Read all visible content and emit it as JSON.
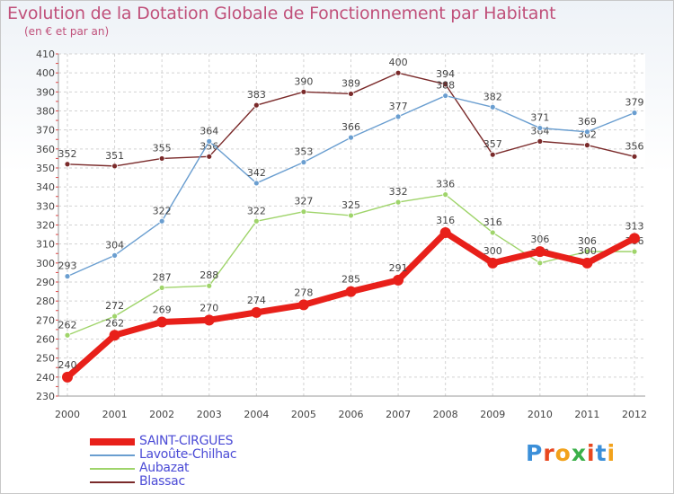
{
  "title": "Evolution de la Dotation Globale de Fonctionnement par Habitant",
  "subtitle": "(en € et par an)",
  "logo": {
    "letters": [
      "P",
      "r",
      "o",
      "x",
      "i",
      "t",
      "i"
    ],
    "colors": [
      "#3b8fd9",
      "#e8471f",
      "#f2a21b",
      "#3bb04a",
      "#e8471f",
      "#3b8fd9",
      "#f2a21b"
    ]
  },
  "chart_data": {
    "type": "line",
    "x": [
      "2000",
      "2001",
      "2002",
      "2003",
      "2004",
      "2005",
      "2006",
      "2007",
      "2008",
      "2009",
      "2010",
      "2011",
      "2012"
    ],
    "ylim": [
      230,
      410
    ],
    "yticks": [
      "230",
      "240",
      "250",
      "260",
      "270",
      "280",
      "290",
      "300",
      "310",
      "320",
      "330",
      "340",
      "350",
      "360",
      "370",
      "380",
      "390",
      "400",
      "410"
    ],
    "grid": true,
    "legend_position": "bottom-left",
    "series": [
      {
        "name": "Blassac",
        "color": "#7a2a2a",
        "values": [
          352,
          351,
          355,
          356,
          383,
          390,
          389,
          400,
          394,
          357,
          364,
          362,
          356
        ]
      },
      {
        "name": "Lavoûte-Chilhac",
        "color": "#6a9ed0",
        "values": [
          293,
          304,
          322,
          364,
          342,
          353,
          366,
          377,
          388,
          382,
          371,
          369,
          379
        ]
      },
      {
        "name": "Aubazat",
        "color": "#9fd46a",
        "values": [
          262,
          272,
          287,
          288,
          322,
          327,
          325,
          332,
          336,
          316,
          300,
          306,
          306
        ]
      },
      {
        "name": "SAINT-CIRGUES",
        "color": "#e8201a",
        "values": [
          240,
          262,
          269,
          270,
          274,
          278,
          285,
          291,
          316,
          300,
          306,
          300,
          313
        ]
      }
    ],
    "legend": [
      "SAINT-CIRGUES",
      "Lavoûte-Chilhac",
      "Aubazat",
      "Blassac"
    ]
  }
}
